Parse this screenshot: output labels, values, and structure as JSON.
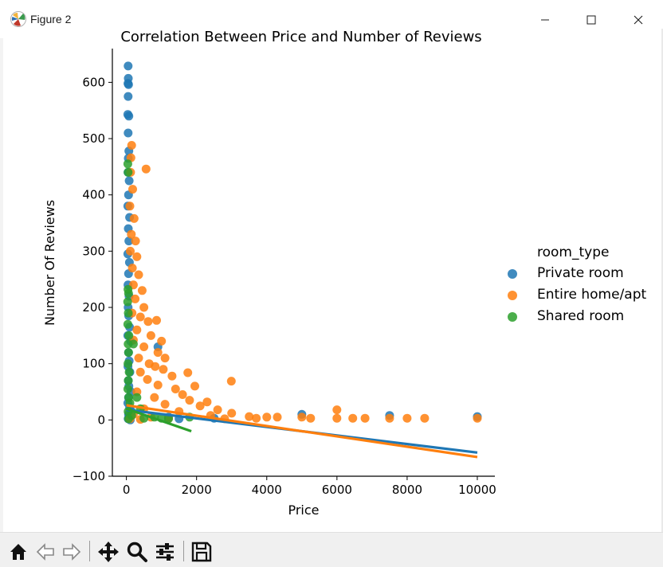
{
  "window": {
    "title": "Figure 2",
    "minimize_icon": "minimize-icon",
    "maximize_icon": "maximize-icon",
    "close_icon": "close-icon"
  },
  "toolbar": {
    "buttons": [
      {
        "name": "home-button",
        "icon": "home-icon"
      },
      {
        "name": "back-button",
        "icon": "back-arrow-icon"
      },
      {
        "name": "forward-button",
        "icon": "forward-arrow-icon"
      },
      {
        "name": "pan-button",
        "icon": "move-icon"
      },
      {
        "name": "zoom-button",
        "icon": "magnifier-icon"
      },
      {
        "name": "configure-subplots-button",
        "icon": "sliders-icon"
      },
      {
        "name": "save-button",
        "icon": "floppy-disk-icon"
      }
    ]
  },
  "chart_data": {
    "type": "scatter",
    "title": "Correlation Between Price and Number of Reviews",
    "xlabel": "Price",
    "ylabel": "Number Of Reviews",
    "xlim": [
      -400,
      10500
    ],
    "ylim": [
      -100,
      660
    ],
    "xticks": [
      0,
      2000,
      4000,
      6000,
      8000,
      10000
    ],
    "yticks": [
      -100,
      0,
      100,
      200,
      300,
      400,
      500,
      600
    ],
    "xtick_labels": [
      "0",
      "2000",
      "4000",
      "6000",
      "8000",
      "10000"
    ],
    "ytick_labels": [
      "−100",
      "0",
      "100",
      "200",
      "300",
      "400",
      "500",
      "600"
    ],
    "grid": false,
    "legend_title": "room_type",
    "legend_position": "right",
    "series": [
      {
        "name": "Private room",
        "color": "#1f77b4",
        "points": [
          [
            50,
            629
          ],
          [
            55,
            607
          ],
          [
            45,
            598
          ],
          [
            60,
            596
          ],
          [
            50,
            575
          ],
          [
            40,
            543
          ],
          [
            70,
            540
          ],
          [
            50,
            510
          ],
          [
            70,
            478
          ],
          [
            55,
            465
          ],
          [
            45,
            440
          ],
          [
            80,
            425
          ],
          [
            60,
            400
          ],
          [
            40,
            380
          ],
          [
            90,
            360
          ],
          [
            55,
            340
          ],
          [
            70,
            318
          ],
          [
            40,
            295
          ],
          [
            85,
            280
          ],
          [
            60,
            260
          ],
          [
            45,
            240
          ],
          [
            75,
            220
          ],
          [
            50,
            200
          ],
          [
            65,
            185
          ],
          [
            90,
            165
          ],
          [
            40,
            150
          ],
          [
            120,
            140
          ],
          [
            60,
            120
          ],
          [
            80,
            105
          ],
          [
            45,
            95
          ],
          [
            100,
            85
          ],
          [
            55,
            70
          ],
          [
            70,
            60
          ],
          [
            130,
            50
          ],
          [
            60,
            40
          ],
          [
            40,
            30
          ],
          [
            90,
            22
          ],
          [
            150,
            15
          ],
          [
            60,
            10
          ],
          [
            80,
            5
          ],
          [
            50,
            2
          ],
          [
            110,
            0
          ],
          [
            900,
            130
          ],
          [
            1200,
            5
          ],
          [
            1500,
            2
          ],
          [
            5000,
            10
          ],
          [
            7500,
            8
          ],
          [
            10000,
            6
          ],
          [
            2500,
            3
          ]
        ],
        "regression": [
          [
            0,
            18
          ],
          [
            10000,
            -58
          ]
        ]
      },
      {
        "name": "Entire home/apt",
        "color": "#ff7f0e",
        "points": [
          [
            150,
            488
          ],
          [
            130,
            466
          ],
          [
            560,
            446
          ],
          [
            120,
            440
          ],
          [
            180,
            410
          ],
          [
            100,
            380
          ],
          [
            220,
            358
          ],
          [
            140,
            330
          ],
          [
            260,
            318
          ],
          [
            110,
            300
          ],
          [
            300,
            290
          ],
          [
            170,
            270
          ],
          [
            350,
            258
          ],
          [
            200,
            240
          ],
          [
            450,
            230
          ],
          [
            250,
            215
          ],
          [
            500,
            200
          ],
          [
            160,
            190
          ],
          [
            400,
            183
          ],
          [
            620,
            175
          ],
          [
            860,
            177
          ],
          [
            300,
            160
          ],
          [
            700,
            150
          ],
          [
            200,
            142
          ],
          [
            1000,
            140
          ],
          [
            500,
            130
          ],
          [
            900,
            120
          ],
          [
            350,
            110
          ],
          [
            1100,
            110
          ],
          [
            650,
            100
          ],
          [
            820,
            95
          ],
          [
            1050,
            90
          ],
          [
            400,
            85
          ],
          [
            1750,
            84
          ],
          [
            1300,
            78
          ],
          [
            600,
            72
          ],
          [
            2990,
            69
          ],
          [
            900,
            62
          ],
          [
            1400,
            55
          ],
          [
            1950,
            60
          ],
          [
            300,
            50
          ],
          [
            1600,
            45
          ],
          [
            800,
            40
          ],
          [
            1800,
            35
          ],
          [
            2300,
            32
          ],
          [
            1100,
            28
          ],
          [
            2100,
            25
          ],
          [
            500,
            20
          ],
          [
            2600,
            18
          ],
          [
            1500,
            15
          ],
          [
            3000,
            12
          ],
          [
            2400,
            8
          ],
          [
            3500,
            6
          ],
          [
            4000,
            5
          ],
          [
            4300,
            5
          ],
          [
            5000,
            5
          ],
          [
            5250,
            3
          ],
          [
            6000,
            18
          ],
          [
            6000,
            3
          ],
          [
            6450,
            3
          ],
          [
            6800,
            3
          ],
          [
            7500,
            3
          ],
          [
            8000,
            3
          ],
          [
            8500,
            3
          ],
          [
            10000,
            3
          ],
          [
            200,
            10
          ],
          [
            700,
            5
          ],
          [
            1200,
            3
          ],
          [
            100,
            2
          ],
          [
            400,
            1
          ],
          [
            2800,
            2
          ],
          [
            3700,
            3
          ]
        ],
        "regression": [
          [
            0,
            26
          ],
          [
            10000,
            -66
          ]
        ]
      },
      {
        "name": "Shared room",
        "color": "#2ca02c",
        "points": [
          [
            40,
            455
          ],
          [
            50,
            440
          ],
          [
            45,
            232
          ],
          [
            60,
            225
          ],
          [
            35,
            210
          ],
          [
            55,
            190
          ],
          [
            40,
            170
          ],
          [
            70,
            150
          ],
          [
            50,
            135
          ],
          [
            60,
            120
          ],
          [
            45,
            100
          ],
          [
            80,
            85
          ],
          [
            55,
            70
          ],
          [
            40,
            55
          ],
          [
            65,
            40
          ],
          [
            200,
            135
          ],
          [
            300,
            40
          ],
          [
            100,
            30
          ],
          [
            400,
            20
          ],
          [
            50,
            15
          ],
          [
            800,
            5
          ],
          [
            1000,
            3
          ],
          [
            1200,
            2
          ],
          [
            1800,
            5
          ],
          [
            150,
            8
          ],
          [
            500,
            3
          ],
          [
            60,
            2
          ]
        ],
        "regression": [
          [
            0,
            20
          ],
          [
            1850,
            -20
          ]
        ]
      }
    ]
  }
}
